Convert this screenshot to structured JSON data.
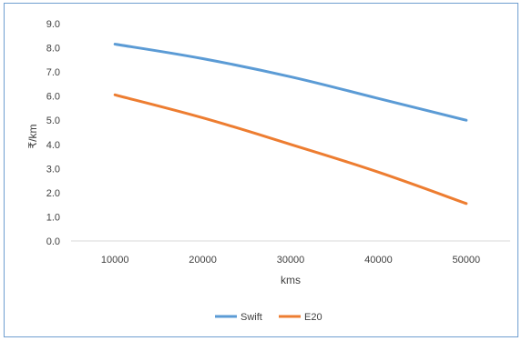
{
  "chart_data": {
    "type": "line",
    "title": "",
    "xlabel": "kms",
    "ylabel": "₹/km",
    "categories": [
      "10000",
      "20000",
      "30000",
      "40000",
      "50000"
    ],
    "x": [
      10000,
      20000,
      30000,
      40000,
      50000
    ],
    "ylim": [
      0,
      9
    ],
    "yticks": [
      "0.0",
      "1.0",
      "2.0",
      "3.0",
      "4.0",
      "5.0",
      "6.0",
      "7.0",
      "8.0",
      "9.0"
    ],
    "grid": false,
    "legend": "bottom",
    "series": [
      {
        "name": "Swift",
        "color": "#5b9bd5",
        "values": [
          8.15,
          7.55,
          6.8,
          5.9,
          5.0
        ]
      },
      {
        "name": "E20",
        "color": "#ed7d31",
        "values": [
          6.05,
          5.1,
          4.0,
          2.85,
          1.55
        ]
      }
    ]
  }
}
